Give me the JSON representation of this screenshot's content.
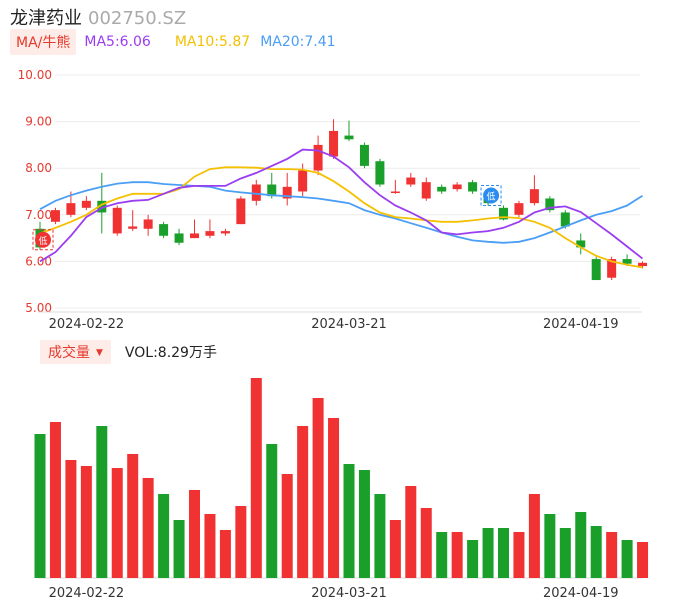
{
  "header": {
    "name": "龙津药业",
    "code": "002750.SZ"
  },
  "legend": {
    "tag": "MA/牛熊",
    "ma5": "MA5:6.06",
    "ma10": "MA10:5.87",
    "ma20": "MA20:7.41",
    "ma5_color": "#9b3df0",
    "ma10_color": "#f5c000",
    "ma20_color": "#4a9ef5"
  },
  "volume_header": {
    "tag": "成交量",
    "value": "VOL:8.29万手"
  },
  "colors": {
    "up": "#f03232",
    "down": "#1aa02a"
  },
  "chart_data": {
    "type": "candlestick",
    "y_ticks": [
      "10.00",
      "9.00",
      "8.00",
      "7.00",
      "6.00",
      "5.00"
    ],
    "ylim": [
      5,
      10
    ],
    "x_labels": [
      {
        "index": 3,
        "label": "2024-02-22"
      },
      {
        "index": 20,
        "label": "2024-03-21"
      },
      {
        "index": 35,
        "label": "2024-04-19"
      }
    ],
    "candles": [
      [
        6.7,
        6.3,
        6.85,
        6.25
      ],
      [
        6.85,
        7.1,
        7.15,
        6.8
      ],
      [
        7.0,
        7.25,
        7.5,
        6.95
      ],
      [
        7.15,
        7.3,
        7.4,
        7.1
      ],
      [
        7.3,
        7.05,
        7.9,
        6.6
      ],
      [
        6.6,
        7.15,
        7.2,
        6.55
      ],
      [
        6.7,
        6.75,
        7.1,
        6.65
      ],
      [
        6.7,
        6.9,
        7.0,
        6.55
      ],
      [
        6.8,
        6.55,
        6.85,
        6.5
      ],
      [
        6.6,
        6.4,
        6.7,
        6.35
      ],
      [
        6.5,
        6.6,
        6.9,
        6.5
      ],
      [
        6.55,
        6.65,
        6.9,
        6.5
      ],
      [
        6.6,
        6.65,
        6.7,
        6.55
      ],
      [
        6.8,
        7.35,
        7.4,
        6.8
      ],
      [
        7.3,
        7.65,
        7.75,
        7.2
      ],
      [
        7.65,
        7.4,
        7.9,
        7.35
      ],
      [
        7.35,
        7.6,
        7.9,
        7.2
      ],
      [
        7.5,
        7.95,
        8.1,
        7.4
      ],
      [
        7.95,
        8.5,
        8.7,
        7.85
      ],
      [
        8.25,
        8.8,
        9.05,
        8.2
      ],
      [
        8.7,
        8.62,
        9.02,
        8.58
      ],
      [
        8.5,
        8.05,
        8.55,
        8.0
      ],
      [
        8.15,
        7.65,
        8.2,
        7.6
      ],
      [
        7.5,
        7.5,
        7.75,
        7.45
      ],
      [
        7.65,
        7.8,
        7.9,
        7.6
      ],
      [
        7.35,
        7.7,
        7.8,
        7.3
      ],
      [
        7.6,
        7.5,
        7.65,
        7.45
      ],
      [
        7.55,
        7.65,
        7.7,
        7.5
      ],
      [
        7.7,
        7.5,
        7.75,
        7.45
      ],
      [
        7.45,
        7.25,
        7.55,
        7.2
      ],
      [
        7.15,
        6.9,
        7.2,
        6.88
      ],
      [
        7.0,
        7.25,
        7.3,
        6.95
      ],
      [
        7.25,
        7.55,
        7.85,
        7.2
      ],
      [
        7.35,
        7.1,
        7.4,
        7.05
      ],
      [
        7.05,
        6.75,
        7.1,
        6.7
      ],
      [
        6.45,
        6.3,
        6.6,
        6.15
      ],
      [
        6.05,
        5.6,
        6.1,
        5.6
      ],
      [
        5.65,
        6.05,
        6.1,
        5.6
      ],
      [
        6.05,
        5.95,
        6.15,
        5.9
      ],
      [
        5.9,
        5.97,
        6.0,
        5.85
      ]
    ],
    "ma5": [
      6.0,
      6.2,
      6.55,
      6.95,
      7.15,
      7.25,
      7.3,
      7.32,
      7.45,
      7.58,
      7.62,
      7.62,
      7.62,
      7.78,
      7.9,
      8.05,
      8.2,
      8.4,
      8.38,
      8.25,
      8.02,
      7.7,
      7.42,
      7.2,
      7.05,
      6.88,
      6.62,
      6.58,
      6.62,
      6.65,
      6.72,
      6.85,
      7.05,
      7.15,
      7.18,
      7.06,
      6.82,
      6.58,
      6.32,
      6.06
    ],
    "ma10": [
      6.6,
      6.72,
      6.85,
      7.0,
      7.22,
      7.35,
      7.45,
      7.45,
      7.45,
      7.55,
      7.82,
      7.98,
      8.02,
      8.02,
      8.01,
      7.98,
      7.98,
      7.97,
      7.9,
      7.72,
      7.5,
      7.25,
      7.05,
      6.95,
      6.92,
      6.88,
      6.85,
      6.85,
      6.88,
      6.92,
      6.95,
      6.93,
      6.85,
      6.72,
      6.5,
      6.3,
      6.12,
      6.0,
      5.93,
      5.87
    ],
    "ma20": [
      7.12,
      7.3,
      7.42,
      7.52,
      7.6,
      7.67,
      7.7,
      7.7,
      7.66,
      7.64,
      7.62,
      7.6,
      7.52,
      7.48,
      7.45,
      7.42,
      7.4,
      7.38,
      7.35,
      7.3,
      7.25,
      7.1,
      7.0,
      6.92,
      6.82,
      6.72,
      6.62,
      6.53,
      6.45,
      6.42,
      6.4,
      6.42,
      6.5,
      6.62,
      6.75,
      6.88,
      7.0,
      7.08,
      7.2,
      7.41
    ],
    "volume": [
      0.72,
      0.78,
      0.59,
      0.56,
      0.76,
      0.55,
      0.62,
      0.5,
      0.42,
      0.29,
      0.44,
      0.32,
      0.24,
      0.36,
      1.0,
      0.67,
      0.52,
      0.76,
      0.9,
      0.8,
      0.57,
      0.54,
      0.42,
      0.29,
      0.46,
      0.35,
      0.23,
      0.23,
      0.19,
      0.25,
      0.25,
      0.23,
      0.42,
      0.32,
      0.25,
      0.33,
      0.26,
      0.23,
      0.19,
      0.18
    ],
    "markers": [
      {
        "index": 0,
        "glyph": "低",
        "color": "#f03232"
      },
      {
        "index": 29,
        "glyph": "低",
        "color": "#2a8cf0"
      }
    ]
  }
}
